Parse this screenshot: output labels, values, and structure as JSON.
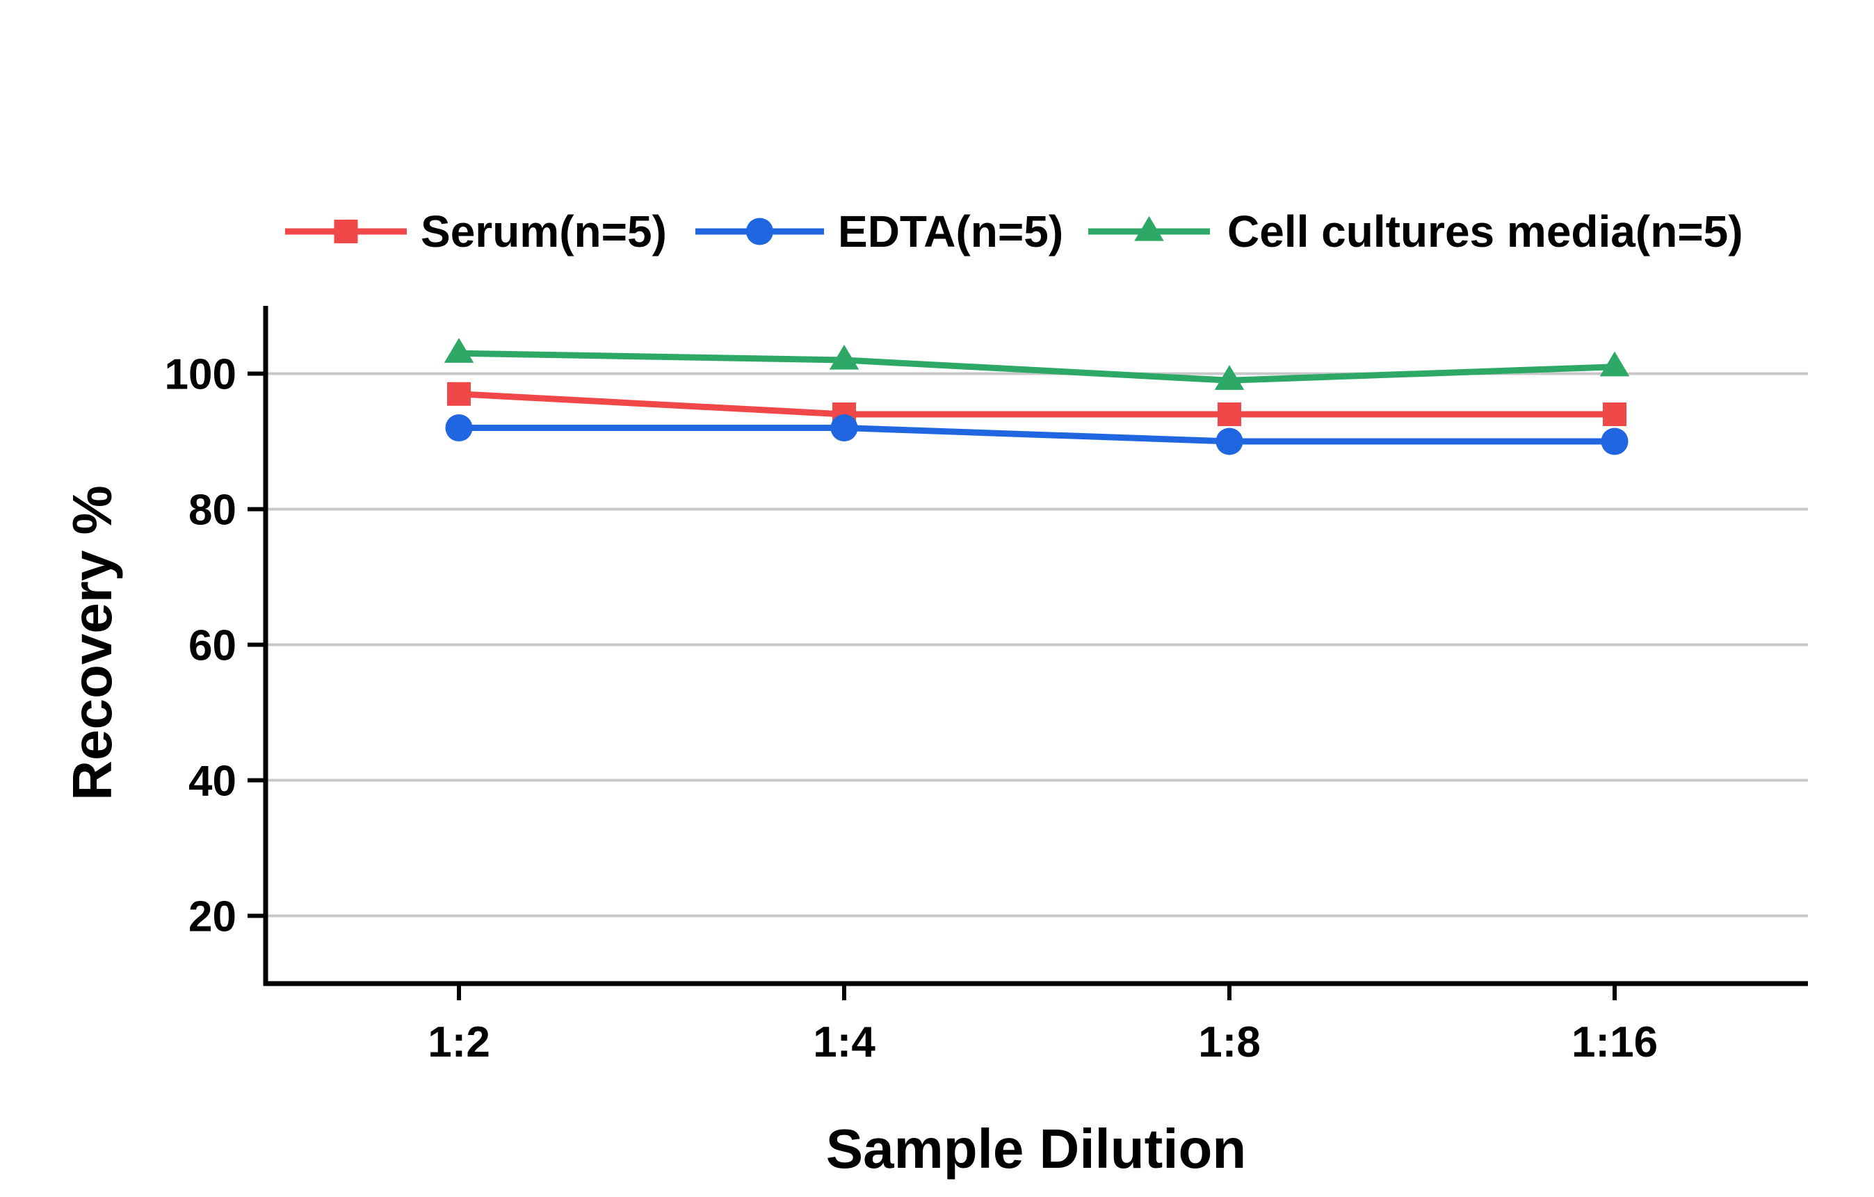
{
  "chart_data": {
    "type": "line",
    "title": "",
    "xlabel": "Sample Dilution",
    "ylabel": "Recovery %",
    "categories": [
      "1:2",
      "1:4",
      "1:8",
      "1:16"
    ],
    "ylim": [
      10,
      110
    ],
    "yticks": [
      20,
      40,
      60,
      80,
      100
    ],
    "grid": true,
    "legend_position": "top",
    "series": [
      {
        "name": "Serum(n=5)",
        "values": [
          97,
          94,
          94,
          94
        ],
        "color": "#f04848",
        "marker": "square"
      },
      {
        "name": "EDTA(n=5)",
        "values": [
          92,
          92,
          90,
          90
        ],
        "color": "#1f66e0",
        "marker": "circle"
      },
      {
        "name": "Cell cultures media(n=5)",
        "values": [
          103,
          102,
          99,
          101
        ],
        "color": "#2ea866",
        "marker": "triangle"
      }
    ]
  }
}
